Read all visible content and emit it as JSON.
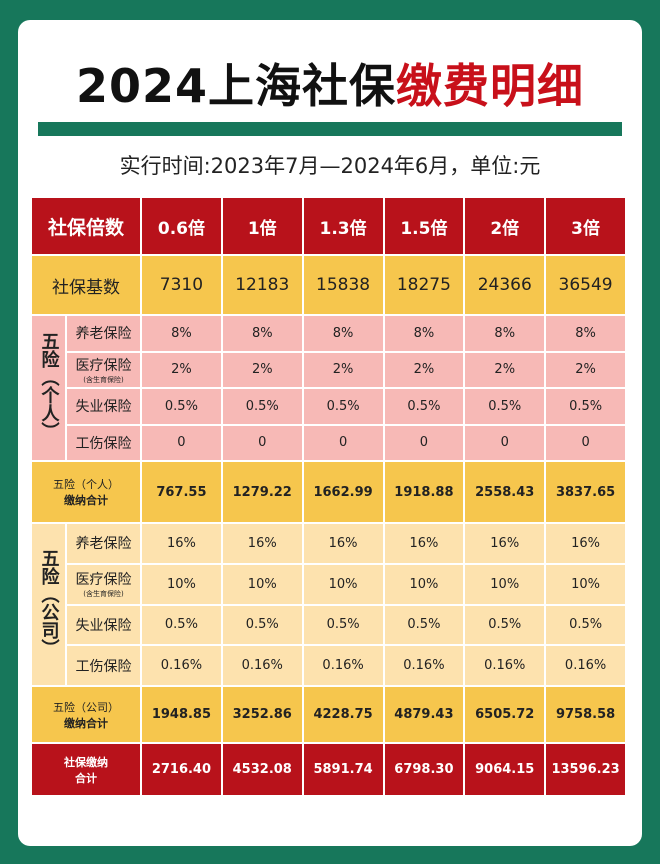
{
  "header": {
    "title_black": "2024上海社保",
    "title_red": "缴费明细",
    "subtitle": "实行时间:2023年7月—2024年6月，单位:元"
  },
  "table": {
    "head": {
      "label": "社保倍数",
      "values": [
        "0.6倍",
        "1倍",
        "1.3倍",
        "1.5倍",
        "2倍",
        "3倍"
      ]
    },
    "base": {
      "label": "社保基数",
      "values": [
        "7310",
        "12183",
        "15838",
        "18275",
        "24366",
        "36549"
      ]
    },
    "personal": {
      "group": "五险（个人）",
      "rows": [
        {
          "label": "养老保险",
          "values": [
            "8%",
            "8%",
            "8%",
            "8%",
            "8%",
            "8%"
          ]
        },
        {
          "label": "医疗保险",
          "note": "(含生育保险)",
          "values": [
            "2%",
            "2%",
            "2%",
            "2%",
            "2%",
            "2%"
          ]
        },
        {
          "label": "失业保险",
          "values": [
            "0.5%",
            "0.5%",
            "0.5%",
            "0.5%",
            "0.5%",
            "0.5%"
          ]
        },
        {
          "label": "工伤保险",
          "values": [
            "0",
            "0",
            "0",
            "0",
            "0",
            "0"
          ]
        }
      ]
    },
    "personal_total": {
      "label": [
        "五险（个人）",
        "缴纳合计"
      ],
      "values": [
        "767.55",
        "1279.22",
        "1662.99",
        "1918.88",
        "2558.43",
        "3837.65"
      ]
    },
    "company": {
      "group": "五险（公司）",
      "rows": [
        {
          "label": "养老保险",
          "values": [
            "16%",
            "16%",
            "16%",
            "16%",
            "16%",
            "16%"
          ]
        },
        {
          "label": "医疗保险",
          "note": "(含生育保险)",
          "values": [
            "10%",
            "10%",
            "10%",
            "10%",
            "10%",
            "10%"
          ]
        },
        {
          "label": "失业保险",
          "values": [
            "0.5%",
            "0.5%",
            "0.5%",
            "0.5%",
            "0.5%",
            "0.5%"
          ]
        },
        {
          "label": "工伤保险",
          "values": [
            "0.16%",
            "0.16%",
            "0.16%",
            "0.16%",
            "0.16%",
            "0.16%"
          ]
        }
      ]
    },
    "company_total": {
      "label": [
        "五险（公司）",
        "缴纳合计"
      ],
      "values": [
        "1948.85",
        "3252.86",
        "4228.75",
        "4879.43",
        "6505.72",
        "9758.58"
      ]
    },
    "grand_total": {
      "label": [
        "社保缴纳",
        "合计"
      ],
      "values": [
        "2716.40",
        "4532.08",
        "5891.74",
        "6798.30",
        "9064.15",
        "13596.23"
      ]
    }
  }
}
